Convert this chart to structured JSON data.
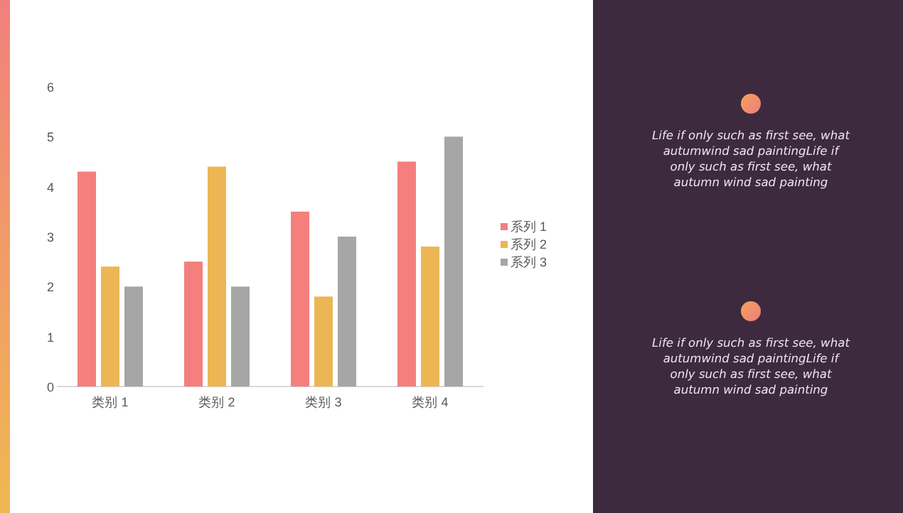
{
  "chart_data": [
    {
      "type": "bar",
      "categories": [
        "类别 1",
        "类别 2",
        "类别 3",
        "类别 4"
      ],
      "series": [
        {
          "name": "系列 1",
          "color": "#f47f7d",
          "values": [
            4.3,
            2.5,
            3.5,
            4.5
          ]
        },
        {
          "name": "系列 2",
          "color": "#ecb654",
          "values": [
            2.4,
            4.4,
            1.8,
            2.8
          ]
        },
        {
          "name": "系列 3",
          "color": "#a6a6a6",
          "values": [
            2,
            2,
            3,
            5
          ]
        }
      ],
      "ylim": [
        0,
        6
      ],
      "yticks": [
        0,
        1,
        2,
        3,
        4,
        5,
        6
      ],
      "grid": false,
      "legend": "right"
    },
    {
      "type": "other",
      "annotations": [
        "Life if only such as first see, what\nautumwind sad paintingLife if\nonly such as first see, what\nautumn wind sad painting",
        "Life if only such as first see, what\nautumwind sad paintingLife if\nonly such as first see, what\nautumn wind sad painting"
      ]
    }
  ]
}
